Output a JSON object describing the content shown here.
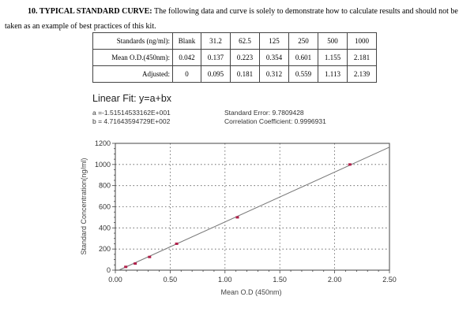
{
  "heading": {
    "number_title": "10. TYPICAL STANDARD CURVE:",
    "text_line1": " The following data and curve is solely to demonstrate how to calculate results and should not be",
    "text_line2": "taken as an example of best practices of this kit."
  },
  "table": {
    "rows": [
      {
        "label": "Standards (ng/ml):",
        "values": [
          "Blank",
          "31.2",
          "62.5",
          "125",
          "250",
          "500",
          "1000"
        ]
      },
      {
        "label": "Mean O.D.(450nm):",
        "values": [
          "0.042",
          "0.137",
          "0.223",
          "0.354",
          "0.601",
          "1.155",
          "2.181"
        ]
      },
      {
        "label": "Adjusted:",
        "values": [
          "0",
          "0.095",
          "0.181",
          "0.312",
          "0.559",
          "1.113",
          "2.139"
        ]
      }
    ]
  },
  "fit": {
    "title": "Linear Fit: y=a+bx",
    "a": "a =-1.51514533162E+001",
    "b": "b = 4.71643594729E+002",
    "std_error": "Standard Error: 9.7809428",
    "correlation": "Correlation Coefficient: 0.9996931"
  },
  "chart_data": {
    "type": "scatter",
    "title": "Linear Fit: y=a+bx",
    "xlabel": "Mean O.D (450nm)",
    "ylabel": "Standard Concentration(ng/ml)",
    "xlim": [
      0,
      2.5
    ],
    "ylim": [
      0,
      1200
    ],
    "x_ticks": [
      "0.00",
      "0.50",
      "1.00",
      "1.50",
      "2.00",
      "2.50"
    ],
    "y_ticks": [
      "0",
      "200",
      "400",
      "600",
      "800",
      "1000",
      "1200"
    ],
    "grid": true,
    "series": [
      {
        "name": "Standards",
        "x": [
          0.095,
          0.181,
          0.312,
          0.559,
          1.113,
          2.139
        ],
        "y": [
          31.2,
          62.5,
          125,
          250,
          500,
          1000
        ],
        "color": "#b0204a"
      },
      {
        "name": "Linear fit",
        "fit": {
          "a": -15.1514533162,
          "b": 471.643594729
        },
        "color": "#777777"
      }
    ]
  }
}
